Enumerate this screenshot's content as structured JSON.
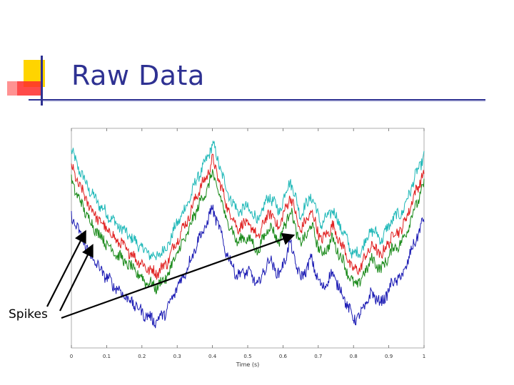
{
  "slide": {
    "title": "Raw Data",
    "annotation": "Spikes",
    "accent_colors": {
      "yellow": "#ffd400",
      "red": "#ff2a2a",
      "blue": "#2e3192",
      "rule": "#2e3192"
    }
  },
  "chart_data": {
    "type": "line",
    "title": "",
    "xlabel": "Time (s)",
    "ylabel": "",
    "xlim": [
      0,
      1
    ],
    "ylim": [
      0,
      1
    ],
    "x_ticks": [
      "0",
      "0.1",
      "0.2",
      "0.3",
      "0.4",
      "0.5",
      "0.6",
      "0.7",
      "0.8",
      "0.9",
      "1"
    ],
    "y_ticks": [],
    "grid": false,
    "legend": "none",
    "trace_keyframes_x": [
      0,
      0.03,
      0.06,
      0.09,
      0.12,
      0.15,
      0.18,
      0.21,
      0.24,
      0.27,
      0.3,
      0.33,
      0.36,
      0.38,
      0.4,
      0.42,
      0.44,
      0.47,
      0.5,
      0.53,
      0.56,
      0.59,
      0.62,
      0.65,
      0.68,
      0.71,
      0.74,
      0.77,
      0.8,
      0.82,
      0.85,
      0.88,
      0.91,
      0.94,
      0.97,
      1.0
    ],
    "series": [
      {
        "color": "#1fb8b8",
        "values": [
          0.92,
          0.8,
          0.7,
          0.63,
          0.57,
          0.52,
          0.47,
          0.42,
          0.39,
          0.44,
          0.56,
          0.66,
          0.8,
          0.86,
          0.96,
          0.85,
          0.73,
          0.62,
          0.64,
          0.57,
          0.7,
          0.62,
          0.78,
          0.6,
          0.7,
          0.55,
          0.63,
          0.52,
          0.4,
          0.42,
          0.53,
          0.48,
          0.58,
          0.62,
          0.77,
          0.9
        ]
      },
      {
        "color": "#e02020",
        "values": [
          0.84,
          0.72,
          0.62,
          0.55,
          0.49,
          0.44,
          0.39,
          0.34,
          0.31,
          0.36,
          0.48,
          0.58,
          0.72,
          0.78,
          0.88,
          0.77,
          0.65,
          0.54,
          0.56,
          0.49,
          0.62,
          0.54,
          0.7,
          0.52,
          0.62,
          0.47,
          0.55,
          0.44,
          0.32,
          0.34,
          0.45,
          0.4,
          0.5,
          0.54,
          0.69,
          0.82
        ]
      },
      {
        "color": "#1a8a1a",
        "values": [
          0.77,
          0.65,
          0.55,
          0.48,
          0.42,
          0.37,
          0.32,
          0.27,
          0.24,
          0.29,
          0.41,
          0.51,
          0.65,
          0.71,
          0.81,
          0.7,
          0.58,
          0.47,
          0.49,
          0.42,
          0.55,
          0.47,
          0.63,
          0.45,
          0.55,
          0.4,
          0.48,
          0.37,
          0.25,
          0.27,
          0.38,
          0.33,
          0.43,
          0.47,
          0.62,
          0.75
        ]
      },
      {
        "color": "#1c1cb4",
        "values": [
          0.6,
          0.48,
          0.38,
          0.31,
          0.25,
          0.2,
          0.15,
          0.1,
          0.07,
          0.12,
          0.24,
          0.34,
          0.48,
          0.54,
          0.64,
          0.53,
          0.41,
          0.3,
          0.32,
          0.25,
          0.38,
          0.3,
          0.46,
          0.28,
          0.38,
          0.23,
          0.31,
          0.2,
          0.08,
          0.1,
          0.21,
          0.16,
          0.26,
          0.3,
          0.45,
          0.58
        ]
      }
    ],
    "annotations": [
      {
        "label": "Spikes",
        "points_to": [
          [
            0.04,
            0.52
          ],
          [
            0.06,
            0.45
          ],
          [
            0.63,
            0.5
          ]
        ]
      }
    ]
  }
}
